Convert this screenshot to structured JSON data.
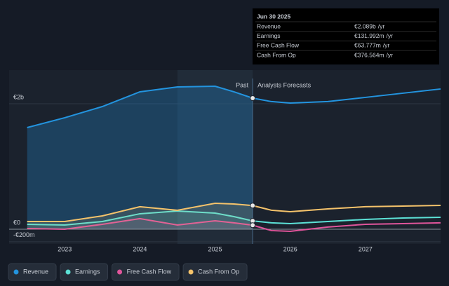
{
  "chart_data": {
    "type": "line",
    "x": [
      2022.5,
      2023,
      2023.5,
      2024,
      2024.5,
      2025,
      2025.25,
      2025.5,
      2025.75,
      2026,
      2026.5,
      2027,
      2027.5,
      2028
    ],
    "xlim": [
      2022.26,
      2028
    ],
    "xticks": [
      2023,
      2024,
      2025,
      2026,
      2027
    ],
    "ylim": [
      -235,
      2536
    ],
    "yticks": [
      {
        "value": -200,
        "label": "-€200m"
      },
      {
        "value": 0,
        "label": "€0"
      },
      {
        "value": 2000,
        "label": "€2b"
      }
    ],
    "divider_labels": [
      "Past",
      "Analysts Forecasts"
    ],
    "tooltip": {
      "date": "Jun 30 2025",
      "per": "/yr"
    },
    "series": [
      {
        "name": "Revenue",
        "color": "#2394df",
        "values": [
          1620,
          1777,
          1955,
          2190,
          2268,
          2279,
          2190,
          2089,
          2034,
          2011,
          2034,
          2101,
          2168,
          2235
        ],
        "value_labels": [
          null,
          null,
          null,
          null,
          null,
          null,
          null,
          "€2.089b",
          null,
          null,
          null,
          null,
          null,
          null
        ]
      },
      {
        "name": "Earnings",
        "color": "#5ce1d6",
        "values": [
          78,
          67,
          123,
          246,
          290,
          257,
          201,
          131.992,
          101,
          89,
          123,
          156,
          179,
          190
        ],
        "value_labels": [
          null,
          null,
          null,
          null,
          null,
          null,
          null,
          "€131.992m",
          null,
          null,
          null,
          null,
          null,
          null
        ]
      },
      {
        "name": "Free Cash Flow",
        "color": "#e0559b",
        "values": [
          11,
          0,
          78,
          168,
          67,
          134,
          101,
          63.777,
          -22,
          -34,
          34,
          78,
          89,
          101
        ],
        "value_labels": [
          null,
          null,
          null,
          null,
          null,
          null,
          null,
          "€63.777m",
          null,
          null,
          null,
          null,
          null,
          null
        ]
      },
      {
        "name": "Cash From Op",
        "color": "#f5c36b",
        "values": [
          123,
          123,
          212,
          358,
          302,
          413,
          402,
          376.564,
          302,
          279,
          324,
          358,
          369,
          380
        ],
        "value_labels": [
          null,
          null,
          null,
          null,
          null,
          null,
          null,
          "€376.564m",
          null,
          null,
          null,
          null,
          null,
          null
        ]
      }
    ]
  }
}
